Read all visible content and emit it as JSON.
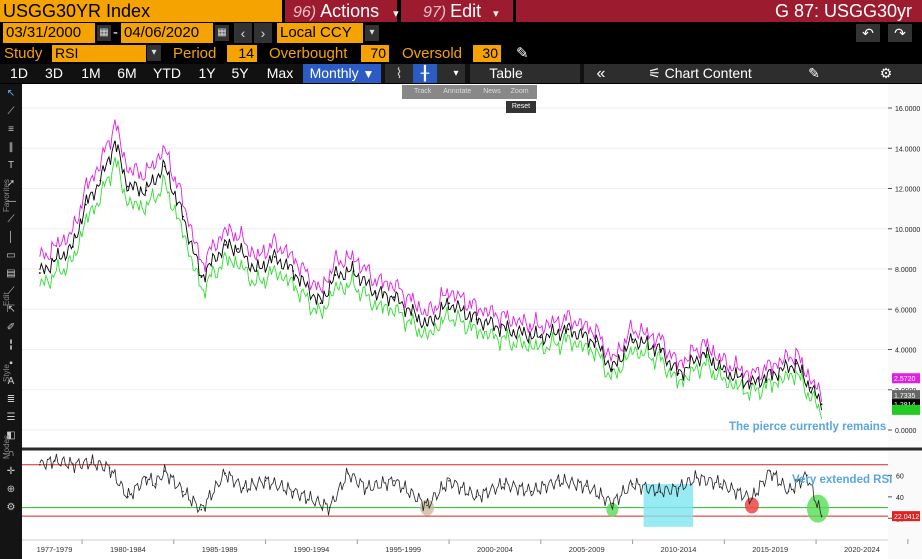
{
  "header": {
    "ticker": "USGG30YR Index",
    "actions_num": "96)",
    "actions_label": "Actions",
    "edit_num": "97)",
    "edit_label": "Edit",
    "function_title": "G 87: USGG30yr"
  },
  "dates": {
    "start": "03/31/2000",
    "end": "04/06/2020",
    "currency": "Local CCY"
  },
  "study": {
    "label": "Study",
    "value": "RSI",
    "period_label": "Period",
    "period": "14",
    "overbought_label": "Overbought",
    "overbought": "70",
    "oversold_label": "Oversold",
    "oversold": "30"
  },
  "toolbar": {
    "periods": [
      "1D",
      "3D",
      "1M",
      "6M",
      "YTD",
      "1Y",
      "5Y",
      "Max"
    ],
    "frequency": "Monthly",
    "table_label": "Table",
    "chart_content_label": "Chart Content"
  },
  "float_toolbar": {
    "track": "Track",
    "annotate": "Annotate",
    "news": "News",
    "zoom": "Zoom",
    "reset": "Reset"
  },
  "left_labels": {
    "favorites": "Favorites",
    "edit": "Edit",
    "style": "Style",
    "modes": "Modes"
  },
  "colors": {
    "orange": "#f5a300",
    "maroon": "#9c1b2e",
    "price": "#000000",
    "upper_band": "#e020e0",
    "lower_band": "#33dd33",
    "annotation": "#5aa6e0"
  },
  "chart_data": [
    {
      "type": "line",
      "x": [
        1977.7,
        1978.5,
        1979.5,
        1980.2,
        1981.0,
        1981.8,
        1982.5,
        1983.5,
        1984.5,
        1985.5,
        1986.5,
        1987.8,
        1988.5,
        1989.5,
        1990.5,
        1991.5,
        1993.0,
        1993.8,
        1994.8,
        1996.0,
        1997.0,
        1998.8,
        2000.0,
        2001.5,
        2003.5,
        2005.0,
        2006.5,
        2008.0,
        2008.9,
        2010.0,
        2011.5,
        2012.5,
        2013.9,
        2015.0,
        2016.5,
        2018.9,
        2019.7,
        2020.3
      ],
      "series": [
        {
          "values": [
            7.8,
            8.4,
            9.1,
            11.2,
            12.4,
            14.3,
            12.1,
            11.9,
            13.1,
            10.6,
            7.6,
            9.2,
            9.0,
            7.9,
            8.6,
            7.9,
            6.3,
            7.7,
            7.9,
            6.8,
            6.6,
            5.2,
            6.3,
            5.5,
            4.9,
            4.6,
            5.0,
            4.4,
            3.0,
            4.5,
            4.0,
            2.8,
            3.8,
            2.9,
            2.3,
            3.3,
            2.1,
            1.28
          ]
        }
      ],
      "annotation": "The pierce currently remains",
      "y_ticks": [
        "16.0000",
        "14.0000",
        "12.0000",
        "10.0000",
        "8.0000",
        "6.0000",
        "4.0000",
        "2.0000",
        "0.0000"
      ],
      "last_values": {
        "upper": "2.5720",
        "mid": "1.7335",
        "price": "1.2814"
      }
    },
    {
      "type": "line",
      "title": "RSI",
      "x": [
        1977.7,
        1978.5,
        1979.5,
        1980.5,
        1981.5,
        1982.5,
        1983.5,
        1984.0,
        1984.5,
        1985.5,
        1986.5,
        1987.8,
        1988.8,
        1990.0,
        1991.5,
        1993.5,
        1994.5,
        1995.5,
        1997.0,
        1998.8,
        2000.0,
        2001.5,
        2003.0,
        2004.5,
        2006.0,
        2007.5,
        2008.9,
        2010.0,
        2011.5,
        2012.5,
        2013.5,
        2014.8,
        2016.5,
        2017.5,
        2018.5,
        2019.5,
        2020.3
      ],
      "series": [
        {
          "values": [
            70,
            74,
            70,
            72,
            67,
            40,
            58,
            52,
            64,
            45,
            28,
            62,
            48,
            55,
            45,
            30,
            62,
            48,
            55,
            32,
            55,
            40,
            52,
            45,
            55,
            50,
            34,
            52,
            45,
            48,
            58,
            52,
            38,
            64,
            45,
            60,
            22
          ]
        }
      ],
      "y_ticks": [
        "60",
        "40",
        "20"
      ],
      "levels": [
        70,
        30
      ],
      "annotation": "Very extended RSI",
      "last_value": "22.0412"
    }
  ],
  "x_axis_labels": [
    "1977-1979",
    "1980-1984",
    "1985-1989",
    "1990-1994",
    "1995-1999",
    "2000-2004",
    "2005-2009",
    "2010-2014",
    "2015-2019",
    "2020-2024"
  ]
}
